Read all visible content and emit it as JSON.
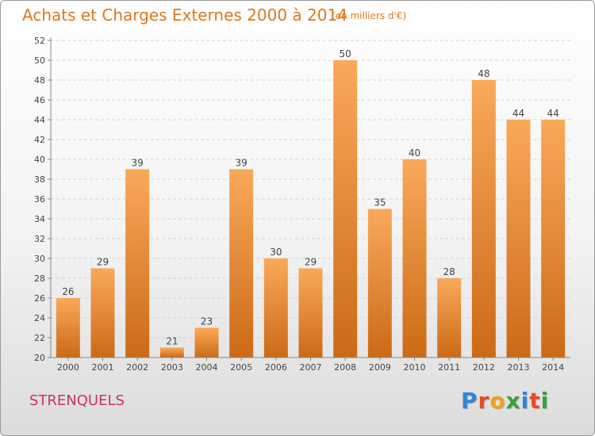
{
  "header": {
    "title": "Achats et Charges Externes 2000 à 2014",
    "subtitle": "(en milliers d'€)"
  },
  "footer": {
    "commune": "STRENQUELS",
    "logo_text": "Proxiti"
  },
  "colors": {
    "title": "#e0781e",
    "commune": "#c8326e",
    "bar_top": "#f9a95a",
    "bar_bottom": "#cc6a16"
  },
  "chart_data": {
    "type": "bar",
    "categories": [
      "2000",
      "2001",
      "2002",
      "2003",
      "2004",
      "2005",
      "2006",
      "2007",
      "2008",
      "2009",
      "2010",
      "2011",
      "2012",
      "2013",
      "2014"
    ],
    "values": [
      26,
      29,
      39,
      21,
      23,
      39,
      30,
      29,
      50,
      35,
      40,
      28,
      48,
      44,
      44
    ],
    "title": "Achats et Charges Externes 2000 à 2014",
    "xlabel": "",
    "ylabel": "",
    "ylim": [
      20,
      52
    ],
    "yticks": [
      20,
      22,
      24,
      26,
      28,
      30,
      32,
      34,
      36,
      38,
      40,
      42,
      44,
      46,
      48,
      50,
      52
    ],
    "grid": true,
    "data_labels": true
  }
}
